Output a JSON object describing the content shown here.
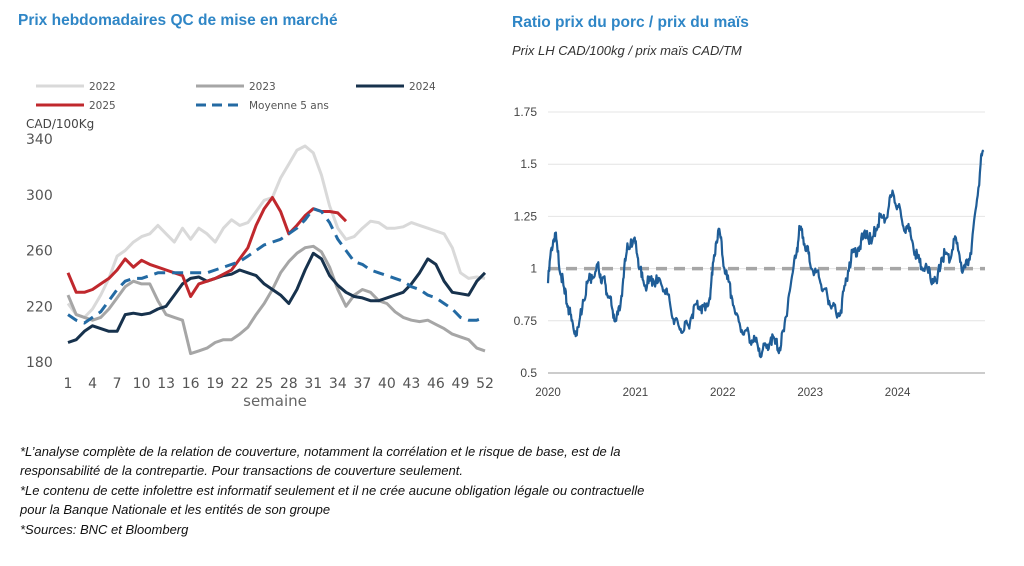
{
  "titles": {
    "left": "Prix hebdomadaires QC de mise en marché",
    "right": "Ratio prix du porc / prix du maïs",
    "right_subtitle": "Prix LH CAD/100kg / prix maïs CAD/TM"
  },
  "footnotes": [
    "*L’analyse complète de la relation de couverture, notamment la corrélation et le risque de base, est de la",
    "responsabilité de la contrepartie. Pour transactions de couverture seulement.",
    "*Le contenu de cette infolettre est informatif seulement et il ne crée aucune obligation légale ou contractuelle",
    "pour la Banque Nationale et les entités de son groupe",
    "*Sources: BNC et Bloomberg"
  ],
  "chart_data": [
    {
      "type": "line",
      "title": "Prix hebdomadaires QC de mise en marché",
      "ylabel": "CAD/100Kg",
      "xlabel": "semaine",
      "ylim": [
        180,
        340
      ],
      "xlim": [
        1,
        52
      ],
      "yticks": [
        180,
        220,
        260,
        300,
        340
      ],
      "xticks": [
        1,
        4,
        7,
        10,
        13,
        16,
        19,
        22,
        25,
        28,
        31,
        34,
        37,
        40,
        43,
        46,
        49,
        52
      ],
      "legend_position": "top",
      "series": [
        {
          "name": "2022",
          "color": "#d9d9d9",
          "dash": false,
          "width": 3,
          "x": [
            1,
            2,
            3,
            4,
            5,
            6,
            7,
            8,
            9,
            10,
            11,
            12,
            13,
            14,
            15,
            16,
            17,
            18,
            19,
            20,
            21,
            22,
            23,
            24,
            25,
            26,
            27,
            28,
            29,
            30,
            31,
            32,
            33,
            34,
            35,
            36,
            37,
            38,
            39,
            40,
            41,
            42,
            43,
            44,
            45,
            46,
            47,
            48,
            49,
            50,
            51,
            52
          ],
          "values": [
            222,
            214,
            212,
            218,
            228,
            240,
            256,
            260,
            266,
            270,
            272,
            278,
            272,
            266,
            276,
            268,
            276,
            272,
            266,
            276,
            282,
            278,
            280,
            288,
            296,
            298,
            312,
            322,
            332,
            335,
            330,
            314,
            292,
            276,
            268,
            270,
            276,
            281,
            280,
            276,
            276,
            277,
            280,
            278,
            276,
            274,
            272,
            262,
            244,
            240,
            241,
            240
          ]
        },
        {
          "name": "2023",
          "color": "#a6a6a6",
          "dash": false,
          "width": 3,
          "x": [
            1,
            2,
            3,
            4,
            5,
            6,
            7,
            8,
            9,
            10,
            11,
            12,
            13,
            14,
            15,
            16,
            17,
            18,
            19,
            20,
            21,
            22,
            23,
            24,
            25,
            26,
            27,
            28,
            29,
            30,
            31,
            32,
            33,
            34,
            35,
            36,
            37,
            38,
            39,
            40,
            41,
            42,
            43,
            44,
            45,
            46,
            47,
            48,
            49,
            50,
            51,
            52
          ],
          "values": [
            228,
            214,
            212,
            210,
            212,
            218,
            226,
            234,
            238,
            236,
            236,
            224,
            214,
            212,
            210,
            186,
            188,
            190,
            194,
            196,
            196,
            200,
            205,
            214,
            222,
            232,
            244,
            252,
            258,
            262,
            263,
            259,
            248,
            232,
            220,
            228,
            232,
            230,
            224,
            222,
            216,
            212,
            210,
            209,
            210,
            207,
            204,
            200,
            198,
            196,
            190,
            188
          ]
        },
        {
          "name": "2024",
          "color": "#17324d",
          "dash": false,
          "width": 3,
          "x": [
            1,
            2,
            3,
            4,
            5,
            6,
            7,
            8,
            9,
            10,
            11,
            12,
            13,
            14,
            15,
            16,
            17,
            18,
            19,
            20,
            21,
            22,
            23,
            24,
            25,
            26,
            27,
            28,
            29,
            30,
            31,
            32,
            33,
            34,
            35,
            36,
            37,
            38,
            39,
            40,
            41,
            42,
            43,
            44,
            45,
            46,
            47,
            48,
            49,
            50,
            51,
            52
          ],
          "values": [
            194,
            196,
            202,
            206,
            204,
            202,
            202,
            214,
            215,
            214,
            215,
            218,
            220,
            228,
            236,
            240,
            241,
            238,
            240,
            242,
            243,
            246,
            244,
            242,
            236,
            232,
            228,
            222,
            232,
            246,
            258,
            254,
            242,
            235,
            230,
            227,
            226,
            224,
            224,
            226,
            228,
            230,
            236,
            244,
            254,
            250,
            238,
            230,
            229,
            228,
            238,
            244
          ]
        },
        {
          "name": "2025",
          "color": "#c0282d",
          "dash": false,
          "width": 3,
          "x": [
            1,
            2,
            3,
            4,
            5,
            6,
            7,
            8,
            9,
            10,
            11,
            12,
            13,
            14,
            15,
            16,
            17,
            18,
            19,
            20,
            21,
            22,
            23,
            24,
            25,
            26,
            27,
            28,
            29,
            30,
            31,
            32,
            33,
            34,
            35
          ],
          "values": [
            244,
            230,
            230,
            232,
            236,
            240,
            246,
            254,
            248,
            253,
            250,
            248,
            246,
            244,
            242,
            227,
            236,
            238,
            240,
            243,
            246,
            254,
            262,
            278,
            290,
            298,
            288,
            272,
            278,
            285,
            290,
            288,
            288,
            287,
            281
          ]
        },
        {
          "name": "Moyenne 5 ans",
          "color": "#236aa3",
          "dash": true,
          "width": 3,
          "x": [
            1,
            2,
            3,
            4,
            5,
            6,
            7,
            8,
            9,
            10,
            11,
            12,
            13,
            14,
            15,
            16,
            17,
            18,
            19,
            20,
            21,
            22,
            23,
            24,
            25,
            26,
            27,
            28,
            29,
            30,
            31,
            32,
            33,
            34,
            35,
            36,
            37,
            38,
            39,
            40,
            41,
            42,
            43,
            44,
            45,
            46,
            47,
            48,
            49,
            50,
            51,
            52
          ],
          "values": [
            214,
            210,
            208,
            212,
            216,
            224,
            232,
            238,
            240,
            240,
            242,
            244,
            244,
            244,
            244,
            244,
            244,
            244,
            246,
            248,
            250,
            252,
            256,
            260,
            264,
            266,
            268,
            272,
            276,
            282,
            290,
            288,
            280,
            268,
            260,
            252,
            250,
            246,
            244,
            242,
            240,
            238,
            234,
            232,
            228,
            226,
            222,
            218,
            212,
            210,
            210,
            212
          ]
        }
      ]
    },
    {
      "type": "line",
      "title": "Ratio prix du porc / prix du maïs",
      "subtitle": "Prix LH CAD/100kg / prix maïs CAD/TM",
      "ylim": [
        0.5,
        1.75
      ],
      "yticks": [
        0.5,
        0.75,
        1,
        1.25,
        1.5,
        1.75
      ],
      "ytick_labels": [
        "0.5",
        "0.75",
        "1",
        "1.25",
        "1.5",
        "1.75"
      ],
      "xticks": [
        "2020",
        "2021",
        "2022",
        "2023",
        "2024"
      ],
      "xlim": [
        "2020-01-01",
        "2024-12-31"
      ],
      "x_unit": "year",
      "reference_line": {
        "value": 1,
        "color": "#a6a6a6",
        "dash": true
      },
      "series": [
        {
          "color": "#1f5d97",
          "x": [
            2020.0,
            2020.04,
            2020.08,
            2020.11,
            2020.15,
            2020.19,
            2020.23,
            2020.27,
            2020.31,
            2020.35,
            2020.4,
            2020.45,
            2020.5,
            2020.55,
            2020.58,
            2020.62,
            2020.66,
            2020.7,
            2020.74,
            2020.78,
            2020.82,
            2020.86,
            2020.9,
            2020.95,
            2021.0,
            2021.03,
            2021.07,
            2021.11,
            2021.15,
            2021.2,
            2021.25,
            2021.3,
            2021.35,
            2021.4,
            2021.45,
            2021.5,
            2021.55,
            2021.6,
            2021.65,
            2021.7,
            2021.75,
            2021.8,
            2021.85,
            2021.88,
            2021.92,
            2021.96,
            2022.0,
            2022.05,
            2022.1,
            2022.15,
            2022.2,
            2022.25,
            2022.3,
            2022.35,
            2022.4,
            2022.45,
            2022.5,
            2022.55,
            2022.6,
            2022.65,
            2022.7,
            2022.75,
            2022.8,
            2022.85,
            2022.88,
            2022.92,
            2022.96,
            2023.0,
            2023.05,
            2023.1,
            2023.15,
            2023.2,
            2023.25,
            2023.3,
            2023.35,
            2023.4,
            2023.45,
            2023.5,
            2023.55,
            2023.6,
            2023.65,
            2023.7,
            2023.75,
            2023.8,
            2023.85,
            2023.9,
            2023.95,
            2024.0,
            2024.05,
            2024.1,
            2024.15,
            2024.2,
            2024.25,
            2024.3,
            2024.35,
            2024.4,
            2024.45,
            2024.5,
            2024.55,
            2024.6,
            2024.65,
            2024.7,
            2024.75,
            2024.8,
            2024.85,
            2024.9,
            2024.95,
            2024.98
          ],
          "values": [
            0.93,
            1.1,
            1.17,
            1.08,
            0.97,
            0.88,
            0.82,
            0.75,
            0.7,
            0.72,
            0.85,
            0.93,
            0.97,
            0.99,
            1.0,
            0.95,
            0.92,
            0.86,
            0.8,
            0.75,
            0.8,
            0.95,
            1.08,
            1.14,
            1.12,
            1.05,
            0.96,
            0.92,
            0.93,
            0.95,
            0.93,
            0.92,
            0.9,
            0.82,
            0.75,
            0.72,
            0.7,
            0.73,
            0.78,
            0.83,
            0.82,
            0.8,
            0.86,
            0.97,
            1.12,
            1.19,
            1.05,
            0.95,
            0.87,
            0.78,
            0.72,
            0.7,
            0.68,
            0.65,
            0.63,
            0.6,
            0.62,
            0.67,
            0.64,
            0.62,
            0.7,
            0.86,
            0.98,
            1.1,
            1.19,
            1.15,
            1.1,
            1.02,
            0.98,
            0.96,
            0.9,
            0.86,
            0.82,
            0.78,
            0.8,
            0.92,
            1.03,
            1.08,
            1.1,
            1.14,
            1.18,
            1.12,
            1.19,
            1.25,
            1.22,
            1.3,
            1.36,
            1.3,
            1.23,
            1.2,
            1.16,
            1.08,
            1.03,
            1.0,
            0.98,
            0.95,
            0.93,
            1.05,
            1.07,
            1.04,
            1.14,
            1.08,
            0.99,
            1.02,
            1.12,
            1.3,
            1.5,
            1.56
          ]
        }
      ]
    }
  ]
}
